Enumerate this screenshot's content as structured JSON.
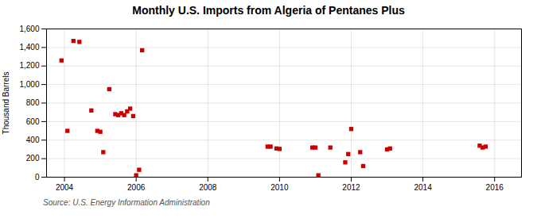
{
  "chart_data": {
    "type": "scatter",
    "title": "Monthly U.S. Imports from Algeria of Pentanes Plus",
    "ylabel": "Thousand Barrels",
    "caption": "Source: U.S. Energy Information Administration",
    "color": "#cc0000",
    "marker": "square",
    "grid": true,
    "xlim": [
      2003.5,
      2016.75
    ],
    "xticks": [
      2004,
      2006,
      2008,
      2010,
      2012,
      2014,
      2016
    ],
    "ylim": [
      0,
      1600
    ],
    "yticks": [
      0,
      200,
      400,
      600,
      800,
      {
        "value": 1000,
        "label": "1,000"
      },
      {
        "value": 1200,
        "label": "1,200"
      },
      {
        "value": 1400,
        "label": "1,400"
      },
      {
        "value": 1600,
        "label": "1,600"
      }
    ],
    "x": [
      2003.917,
      2004.083,
      2004.25,
      2004.417,
      2004.75,
      2004.917,
      2005.0,
      2005.083,
      2005.25,
      2005.417,
      2005.5,
      2005.583,
      2005.667,
      2005.75,
      2005.833,
      2005.917,
      2006.0,
      2006.083,
      2006.167,
      2009.667,
      2009.75,
      2009.917,
      2010.0,
      2010.917,
      2011.0,
      2011.083,
      2011.417,
      2011.833,
      2011.917,
      2012.0,
      2012.25,
      2012.333,
      2013.0,
      2013.083,
      2015.583,
      2015.667,
      2015.75
    ],
    "values": [
      1260,
      500,
      1470,
      1460,
      720,
      500,
      490,
      270,
      950,
      680,
      670,
      690,
      670,
      710,
      740,
      660,
      20,
      80,
      1370,
      330,
      330,
      310,
      305,
      320,
      320,
      20,
      320,
      160,
      250,
      520,
      270,
      120,
      300,
      310,
      340,
      320,
      330
    ]
  }
}
